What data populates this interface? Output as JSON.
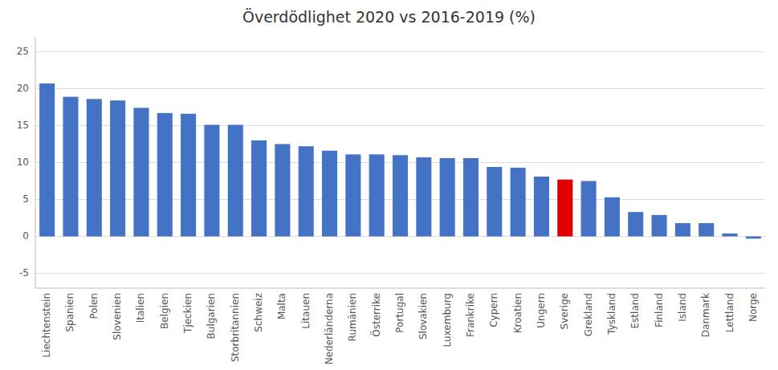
{
  "chart_data": {
    "type": "bar",
    "title": "Överdödlighet 2020 vs 2016-2019 (%)",
    "categories": [
      "Liechtenstein",
      "Spanien",
      "Polen",
      "Slovenien",
      "Italien",
      "Belgien",
      "Tjeckien",
      "Bulgarien",
      "Storbritannien",
      "Schweiz",
      "Malta",
      "Litauen",
      "Nederländerna",
      "Rumänien",
      "Österrike",
      "Portugal",
      "Slovakien",
      "Luxemburg",
      "Frankrike",
      "Cypern",
      "Kroatien",
      "Ungern",
      "Sverige",
      "Grekland",
      "Tyskland",
      "Estland",
      "Finland",
      "Island",
      "Danmark",
      "Lettland",
      "Norge"
    ],
    "values": [
      20.7,
      18.9,
      18.6,
      18.4,
      17.4,
      16.7,
      16.6,
      15.1,
      15.1,
      13.0,
      12.5,
      12.2,
      11.6,
      11.1,
      11.1,
      11.0,
      10.7,
      10.6,
      10.6,
      9.4,
      9.3,
      8.1,
      7.7,
      7.5,
      5.3,
      3.3,
      2.9,
      1.8,
      1.8,
      0.4,
      -0.3
    ],
    "colors": [
      "#4472c4",
      "#4472c4",
      "#4472c4",
      "#4472c4",
      "#4472c4",
      "#4472c4",
      "#4472c4",
      "#4472c4",
      "#4472c4",
      "#4472c4",
      "#4472c4",
      "#4472c4",
      "#4472c4",
      "#4472c4",
      "#4472c4",
      "#4472c4",
      "#4472c4",
      "#4472c4",
      "#4472c4",
      "#4472c4",
      "#4472c4",
      "#4472c4",
      "#e00000",
      "#4472c4",
      "#4472c4",
      "#4472c4",
      "#4472c4",
      "#4472c4",
      "#4472c4",
      "#4472c4",
      "#4472c4"
    ],
    "ylim": [
      -7,
      27
    ],
    "yticks": [
      -5,
      0,
      5,
      10,
      15,
      20,
      25
    ],
    "grid": true
  }
}
